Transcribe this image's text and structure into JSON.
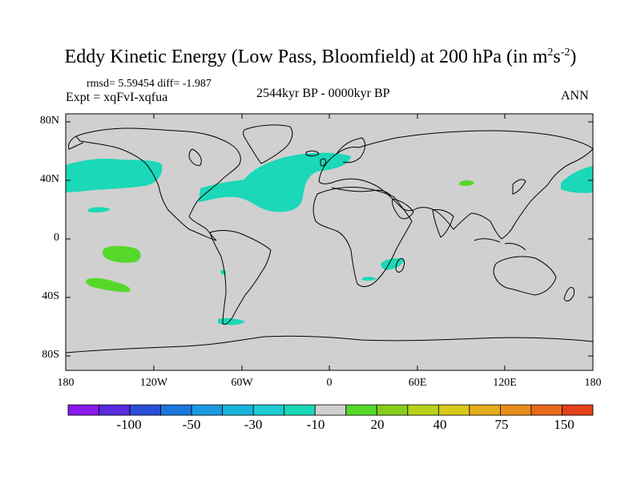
{
  "title": {
    "main": "Eddy Kinetic Energy (Low Pass, Bloomfield) at 200 hPa (in m",
    "sup1": "2",
    "mid": "s",
    "sup2": "-2",
    "end": ")"
  },
  "stats": "rmsd= 5.59454 diff= -1.987",
  "experiment": "Expt = xqFvI-xqfua",
  "period": "2544kyr BP - 0000kyr BP",
  "season": "ANN",
  "map": {
    "lat_labels": [
      "80N",
      "40N",
      "0",
      "40S",
      "80S"
    ],
    "lon_labels": [
      "180",
      "120W",
      "60W",
      "0",
      "60E",
      "120E",
      "180"
    ],
    "land_color": "#d0d0d0",
    "coast_color": "#000000"
  },
  "colorbar": {
    "colors": [
      "#8a1aeb",
      "#5a2ae0",
      "#2a50d8",
      "#1a78dc",
      "#1a9ae0",
      "#19b4da",
      "#1acbd0",
      "#1ad8b8",
      "#d0d0d0",
      "#56d82a",
      "#88cc1a",
      "#b8d21a",
      "#d8c81a",
      "#e4ac1a",
      "#e88e1a",
      "#e66a1a",
      "#e4401a"
    ],
    "labels": [
      "-100",
      "-50",
      "-30",
      "-10",
      "20",
      "40",
      "75",
      "150"
    ]
  }
}
